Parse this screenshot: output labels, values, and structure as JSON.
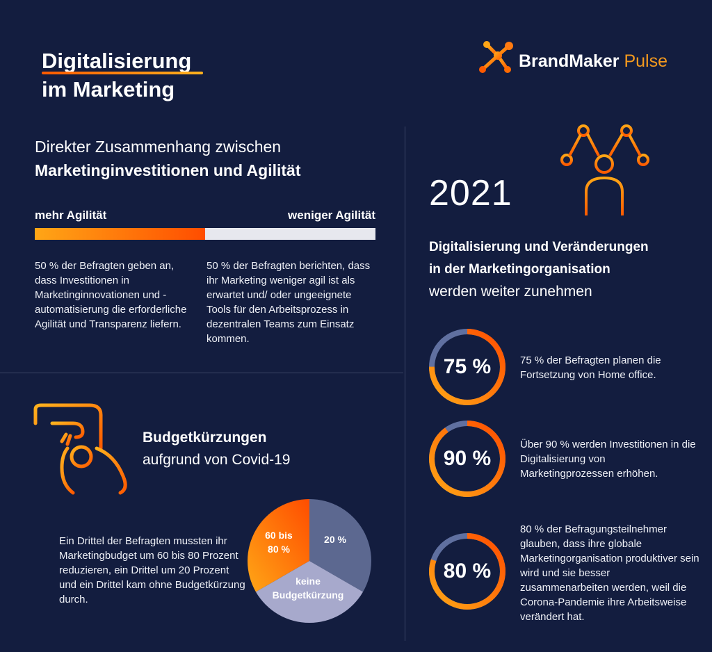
{
  "header": {
    "title_line1": "Digitalisierung",
    "title_line2": "im Marketing",
    "brand_main": "BrandMaker",
    "brand_accent": "Pulse",
    "brand_icon": "molecule-logo-icon"
  },
  "agility": {
    "heading_line1": "Direkter Zusammenhang zwischen",
    "heading_line2": "Marketinginvestitionen und Agilität",
    "left_label": "mehr Agilität",
    "right_label": "weniger Agilität",
    "left_share": 0.5,
    "right_share": 0.5,
    "left_text": "50 % der Befragten geben an, dass Investitionen in Marketinginnovationen und -automatisierung die erforderliche Agilität und Transparenz liefern.",
    "right_text": "50 % der Befragten berichten, dass ihr Marketing weniger agil ist als erwartet und/ oder ungeeignete Tools für den Arbeitsprozess in dezentralen Teams zum Einsatz kommen."
  },
  "outlook": {
    "year": "2021",
    "icon": "person-network-icon",
    "heading_line1": "Digitalisierung und Veränderungen",
    "heading_line2": "in der Marketingorganisation",
    "heading_line3": "werden weiter zunehmen",
    "stats": [
      {
        "value": 0.75,
        "label": "75 %",
        "text": "75 % der Befragten planen die Fortsetzung von Home office."
      },
      {
        "value": 0.9,
        "label": "90 %",
        "text": "Über 90 % werden Investitionen in die Digitalisierung von Marketingprozessen erhöhen."
      },
      {
        "value": 0.8,
        "label": "80 %",
        "text": "80 % der Befragungsteilnehmer glauben, dass ihre globale Marketingorganisation produktiver sein wird und sie besser zusammenarbeiten werden, weil die Corona-Pandemie ihre Arbeitsweise verändert hat."
      }
    ]
  },
  "budget": {
    "heading_line1": "Budgetkürzungen",
    "heading_line2": "aufgrund von Covid-19",
    "icon": "hand-coin-bag-icon",
    "text": "Ein Drittel der Befragten mussten ihr Marketingbudget um 60 bis 80 Prozent reduzieren, ein Drittel um 20 Prozent und ein Drittel kam ohne Budgetkürzung durch.",
    "pie_labels": {
      "a_line1": "60 bis",
      "a_line2": "80 %",
      "b": "20 %",
      "c_line1": "keine",
      "c_line2": "Budgetkürzung"
    }
  },
  "colors": {
    "background": "#131d3f",
    "accent_orange": "#ff6a00",
    "accent_yellow": "#ffa616",
    "ring_track": "#6070a0",
    "pie_slate": "#5c6890",
    "pie_lavender": "#a7a9cc"
  }
}
